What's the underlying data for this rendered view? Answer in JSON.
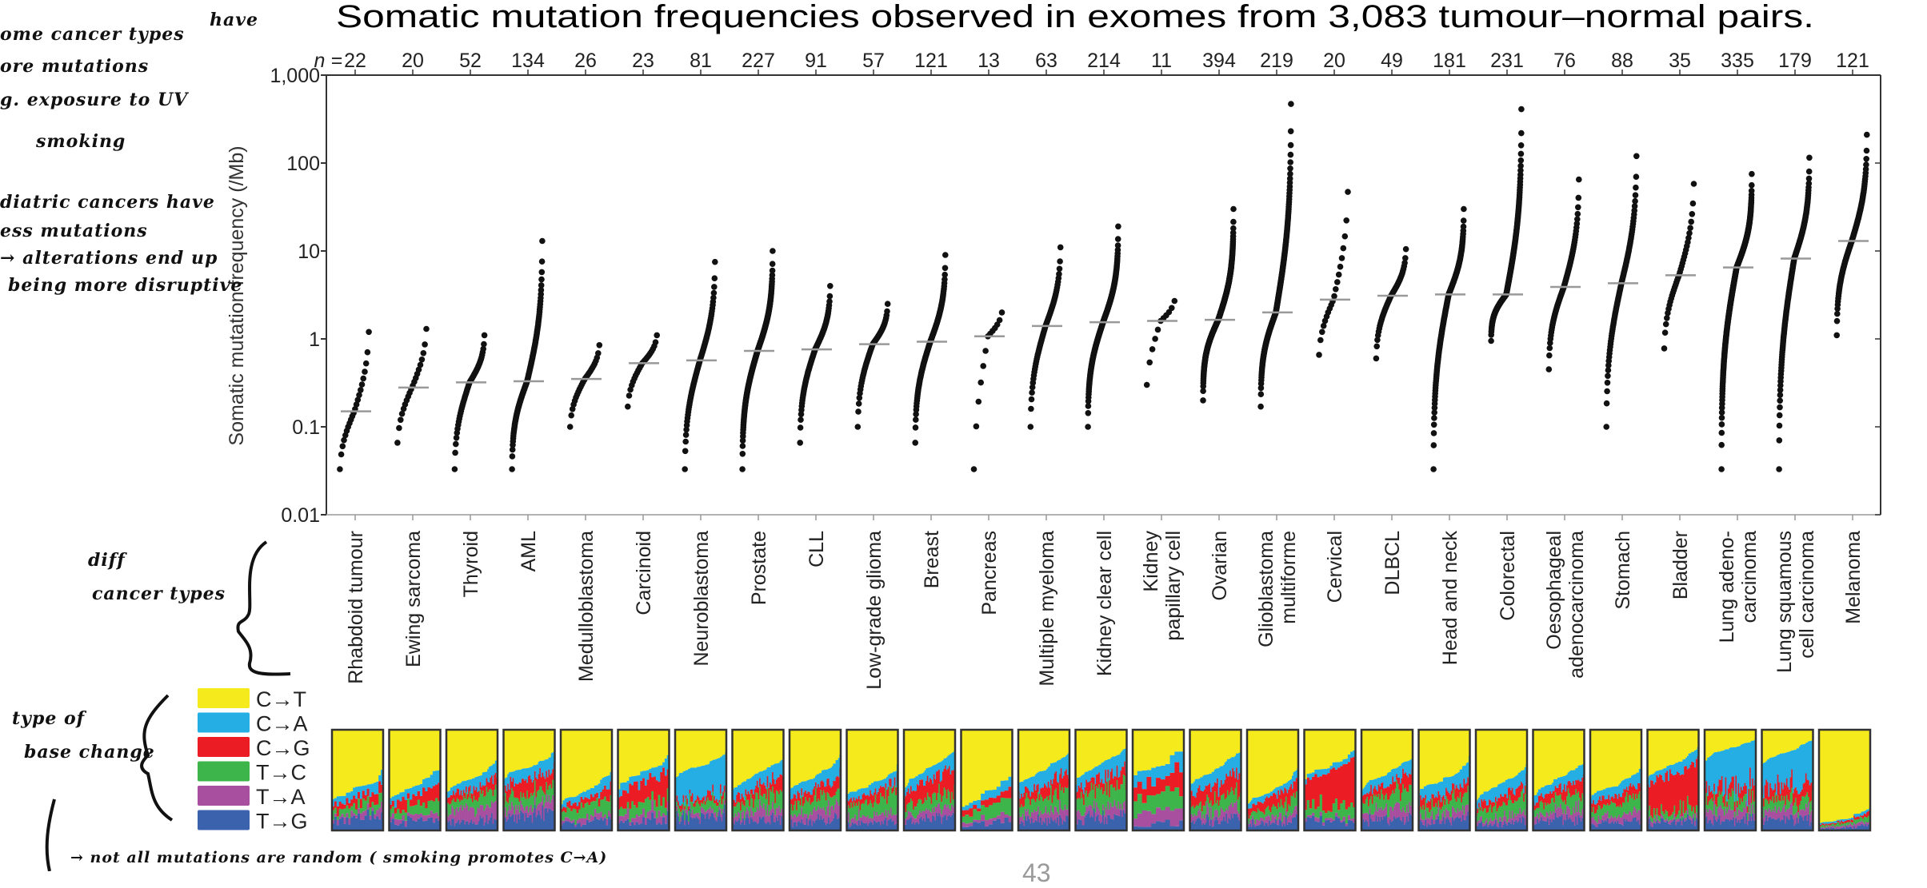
{
  "annotations": {
    "notes_top": [
      "ome cancer types",
      "have",
      "ore mutations",
      "g. exposure to UV",
      "smoking"
    ],
    "notes_mid": [
      "diatric cancers have",
      "ess mutations",
      "→ alterations end up",
      "being more disruptive"
    ],
    "diff_cancer": [
      "diff",
      "cancer types"
    ],
    "base_change": [
      "type of",
      "base change"
    ],
    "bottom_note": "→ not all mutations are random  ( smoking promotes  C→A)"
  },
  "page_number": "43",
  "chart_data": {
    "type": "scatter",
    "title": "Somatic mutation frequencies observed in exomes from 3,083 tumour–normal pairs.",
    "ylabel": "Somatic mutation frequency (/Mb)",
    "yscale": "log",
    "ylim": [
      0.01,
      1000
    ],
    "yticks": [
      "0.01",
      "0.1",
      "1",
      "10",
      "100",
      "1,000"
    ],
    "n_prefix": "n = ",
    "median_marker": "grey horizontal line",
    "categories": [
      {
        "label": [
          "Rhabdoid tumour"
        ],
        "n": 22,
        "median": 0.15,
        "min": 0.033,
        "max": 1.2
      },
      {
        "label": [
          "Ewing sarcoma"
        ],
        "n": 20,
        "median": 0.28,
        "min": 0.066,
        "max": 1.3
      },
      {
        "label": [
          "Thyroid"
        ],
        "n": 52,
        "median": 0.32,
        "min": 0.033,
        "max": 1.1
      },
      {
        "label": [
          "AML"
        ],
        "n": 134,
        "median": 0.33,
        "min": 0.033,
        "max": 13
      },
      {
        "label": [
          "Medulloblastoma"
        ],
        "n": 26,
        "median": 0.35,
        "min": 0.1,
        "max": 0.85
      },
      {
        "label": [
          "Carcinoid"
        ],
        "n": 23,
        "median": 0.53,
        "min": 0.17,
        "max": 1.1
      },
      {
        "label": [
          "Neuroblastoma"
        ],
        "n": 81,
        "median": 0.57,
        "min": 0.033,
        "max": 7.5
      },
      {
        "label": [
          "Prostate"
        ],
        "n": 227,
        "median": 0.73,
        "min": 0.033,
        "max": 10
      },
      {
        "label": [
          "CLL"
        ],
        "n": 91,
        "median": 0.76,
        "min": 0.066,
        "max": 4
      },
      {
        "label": [
          "Low-grade glioma"
        ],
        "n": 57,
        "median": 0.87,
        "min": 0.1,
        "max": 2.5
      },
      {
        "label": [
          "Breast"
        ],
        "n": 121,
        "median": 0.93,
        "min": 0.066,
        "max": 9
      },
      {
        "label": [
          "Pancreas"
        ],
        "n": 13,
        "median": 1.07,
        "min": 0.033,
        "max": 2
      },
      {
        "label": [
          "Multiple myeloma"
        ],
        "n": 63,
        "median": 1.4,
        "min": 0.1,
        "max": 11
      },
      {
        "label": [
          "Kidney clear cell"
        ],
        "n": 214,
        "median": 1.55,
        "min": 0.1,
        "max": 19
      },
      {
        "label": [
          "Kidney",
          "papillary cell"
        ],
        "n": 11,
        "median": 1.6,
        "min": 0.3,
        "max": 2.7
      },
      {
        "label": [
          "Ovarian"
        ],
        "n": 394,
        "median": 1.65,
        "min": 0.2,
        "max": 30
      },
      {
        "label": [
          "Glioblastoma",
          "multiforme"
        ],
        "n": 219,
        "median": 2.0,
        "min": 0.17,
        "max": 470
      },
      {
        "label": [
          "Cervical"
        ],
        "n": 20,
        "median": 2.8,
        "min": 0.66,
        "max": 47
      },
      {
        "label": [
          "DLBCL"
        ],
        "n": 49,
        "median": 3.1,
        "min": 0.6,
        "max": 10.5
      },
      {
        "label": [
          "Head and neck"
        ],
        "n": 181,
        "median": 3.2,
        "min": 0.033,
        "max": 30
      },
      {
        "label": [
          "Colorectal"
        ],
        "n": 231,
        "median": 3.2,
        "min": 0.95,
        "max": 410
      },
      {
        "label": [
          "Oesophageal",
          "adenocarcinoma"
        ],
        "n": 76,
        "median": 3.9,
        "min": 0.45,
        "max": 65
      },
      {
        "label": [
          "Stomach"
        ],
        "n": 88,
        "median": 4.3,
        "min": 0.1,
        "max": 120
      },
      {
        "label": [
          "Bladder"
        ],
        "n": 35,
        "median": 5.3,
        "min": 0.78,
        "max": 58
      },
      {
        "label": [
          "Lung adeno-",
          "carcinoma"
        ],
        "n": 335,
        "median": 6.5,
        "min": 0.033,
        "max": 75
      },
      {
        "label": [
          "Lung squamous",
          "cell carcinoma"
        ],
        "n": 179,
        "median": 8.2,
        "min": 0.033,
        "max": 115
      },
      {
        "label": [
          "Melanoma"
        ],
        "n": 121,
        "median": 13,
        "min": 1.1,
        "max": 210
      }
    ],
    "spectrum": {
      "type": "stacked-bar",
      "legend": [
        {
          "label": "C→T",
          "color": "#f5ea1c"
        },
        {
          "label": "C→A",
          "color": "#25aee4"
        },
        {
          "label": "C→G",
          "color": "#ec1c24"
        },
        {
          "label": "T→C",
          "color": "#3db54a"
        },
        {
          "label": "T→A",
          "color": "#a84f9f"
        },
        {
          "label": "T→G",
          "color": "#3a62ad"
        }
      ],
      "typical_fractions": [
        [
          0.6,
          0.08,
          0.07,
          0.08,
          0.05,
          0.12
        ],
        [
          0.55,
          0.1,
          0.1,
          0.1,
          0.05,
          0.1
        ],
        [
          0.45,
          0.12,
          0.08,
          0.12,
          0.13,
          0.1
        ],
        [
          0.35,
          0.12,
          0.15,
          0.12,
          0.1,
          0.16
        ],
        [
          0.6,
          0.08,
          0.07,
          0.12,
          0.05,
          0.08
        ],
        [
          0.4,
          0.1,
          0.2,
          0.12,
          0.08,
          0.1
        ],
        [
          0.35,
          0.3,
          0.05,
          0.1,
          0.05,
          0.15
        ],
        [
          0.45,
          0.12,
          0.1,
          0.13,
          0.1,
          0.1
        ],
        [
          0.45,
          0.12,
          0.1,
          0.13,
          0.1,
          0.1
        ],
        [
          0.55,
          0.08,
          0.08,
          0.14,
          0.07,
          0.08
        ],
        [
          0.4,
          0.12,
          0.18,
          0.12,
          0.08,
          0.1
        ],
        [
          0.65,
          0.06,
          0.06,
          0.1,
          0.05,
          0.08
        ],
        [
          0.4,
          0.15,
          0.12,
          0.13,
          0.1,
          0.1
        ],
        [
          0.35,
          0.15,
          0.1,
          0.18,
          0.1,
          0.12
        ],
        [
          0.35,
          0.15,
          0.15,
          0.15,
          0.12,
          0.08
        ],
        [
          0.4,
          0.15,
          0.15,
          0.12,
          0.08,
          0.1
        ],
        [
          0.6,
          0.06,
          0.1,
          0.1,
          0.06,
          0.08
        ],
        [
          0.35,
          0.05,
          0.35,
          0.12,
          0.03,
          0.1
        ],
        [
          0.45,
          0.1,
          0.1,
          0.15,
          0.1,
          0.1
        ],
        [
          0.45,
          0.15,
          0.1,
          0.12,
          0.08,
          0.1
        ],
        [
          0.55,
          0.12,
          0.08,
          0.12,
          0.06,
          0.07
        ],
        [
          0.5,
          0.1,
          0.1,
          0.12,
          0.08,
          0.1
        ],
        [
          0.55,
          0.1,
          0.08,
          0.12,
          0.07,
          0.08
        ],
        [
          0.35,
          0.1,
          0.35,
          0.08,
          0.04,
          0.08
        ],
        [
          0.2,
          0.38,
          0.12,
          0.1,
          0.1,
          0.1
        ],
        [
          0.22,
          0.35,
          0.13,
          0.1,
          0.1,
          0.1
        ],
        [
          0.88,
          0.02,
          0.02,
          0.03,
          0.02,
          0.03
        ]
      ]
    }
  }
}
